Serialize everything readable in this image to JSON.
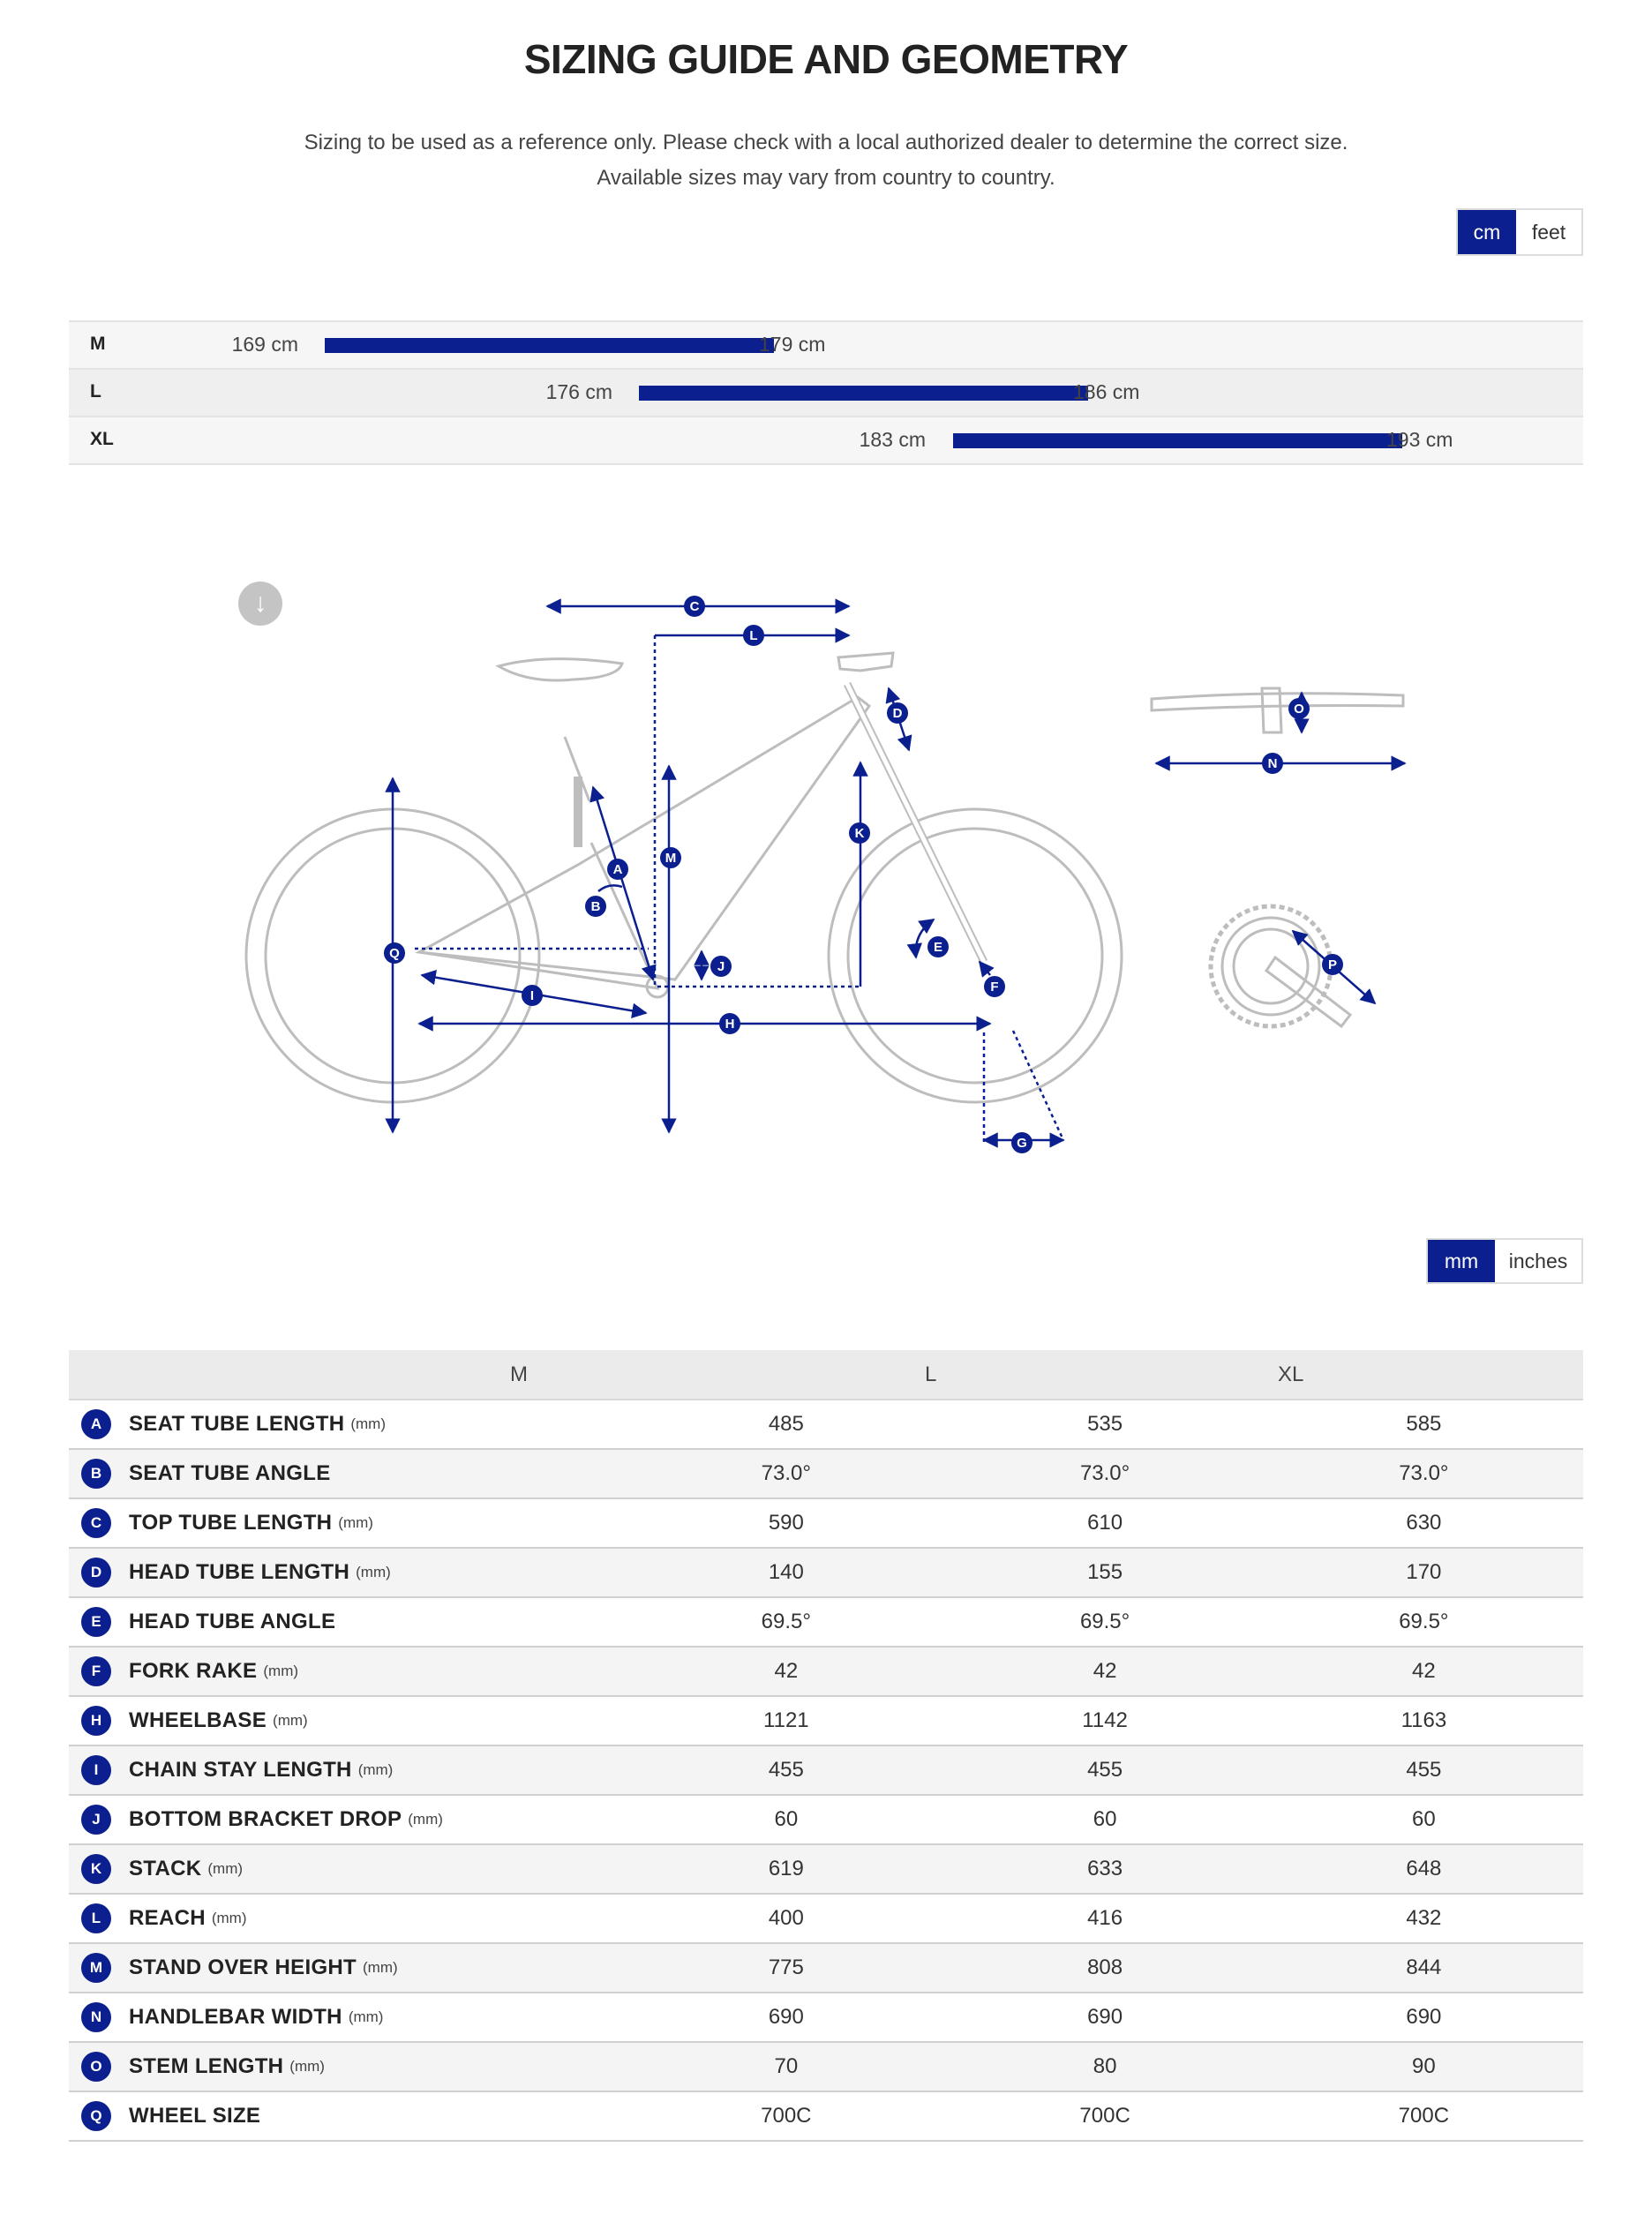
{
  "title": "SIZING GUIDE AND GEOMETRY",
  "subtitle_line1": "Sizing to be used as a reference only. Please check with a local authorized dealer to determine the correct size.",
  "subtitle_line2": "Available sizes may vary from country to country.",
  "height_units": {
    "options": [
      "cm",
      "feet"
    ],
    "selected": "cm"
  },
  "size_chart": [
    {
      "size": "M",
      "min_label": "169 cm",
      "max_label": "179 cm",
      "min": 169,
      "max": 179
    },
    {
      "size": "L",
      "min_label": "176 cm",
      "max_label": "186 cm",
      "min": 176,
      "max": 186
    },
    {
      "size": "XL",
      "min_label": "183 cm",
      "max_label": "193 cm",
      "min": 183,
      "max": 193
    }
  ],
  "diagram": {
    "labels": [
      "A",
      "B",
      "C",
      "D",
      "E",
      "F",
      "G",
      "H",
      "I",
      "J",
      "K",
      "L",
      "M",
      "N",
      "O",
      "P",
      "Q"
    ],
    "accent": "#0b1f8f",
    "frame_color": "#bdbdbd"
  },
  "length_units": {
    "options": [
      "mm",
      "inches"
    ],
    "selected": "mm"
  },
  "geometry": {
    "columns": [
      "",
      "M",
      "L",
      "XL"
    ],
    "rows": [
      {
        "letter": "A",
        "name": "SEAT TUBE LENGTH",
        "unit": "(mm)",
        "values": [
          "485",
          "535",
          "585"
        ]
      },
      {
        "letter": "B",
        "name": "SEAT TUBE ANGLE",
        "unit": "",
        "values": [
          "73.0°",
          "73.0°",
          "73.0°"
        ]
      },
      {
        "letter": "C",
        "name": "TOP TUBE LENGTH",
        "unit": "(mm)",
        "values": [
          "590",
          "610",
          "630"
        ]
      },
      {
        "letter": "D",
        "name": "HEAD TUBE LENGTH",
        "unit": "(mm)",
        "values": [
          "140",
          "155",
          "170"
        ]
      },
      {
        "letter": "E",
        "name": "HEAD TUBE ANGLE",
        "unit": "",
        "values": [
          "69.5°",
          "69.5°",
          "69.5°"
        ]
      },
      {
        "letter": "F",
        "name": "FORK RAKE",
        "unit": "(mm)",
        "values": [
          "42",
          "42",
          "42"
        ]
      },
      {
        "letter": "H",
        "name": "WHEELBASE",
        "unit": "(mm)",
        "values": [
          "1121",
          "1142",
          "1163"
        ]
      },
      {
        "letter": "I",
        "name": "CHAIN STAY LENGTH",
        "unit": "(mm)",
        "values": [
          "455",
          "455",
          "455"
        ]
      },
      {
        "letter": "J",
        "name": "BOTTOM BRACKET DROP",
        "unit": "(mm)",
        "values": [
          "60",
          "60",
          "60"
        ]
      },
      {
        "letter": "K",
        "name": "STACK",
        "unit": "(mm)",
        "values": [
          "619",
          "633",
          "648"
        ]
      },
      {
        "letter": "L",
        "name": "REACH",
        "unit": "(mm)",
        "values": [
          "400",
          "416",
          "432"
        ]
      },
      {
        "letter": "M",
        "name": "STAND OVER HEIGHT",
        "unit": "(mm)",
        "values": [
          "775",
          "808",
          "844"
        ]
      },
      {
        "letter": "N",
        "name": "HANDLEBAR WIDTH",
        "unit": "(mm)",
        "values": [
          "690",
          "690",
          "690"
        ]
      },
      {
        "letter": "O",
        "name": "STEM LENGTH",
        "unit": "(mm)",
        "values": [
          "70",
          "80",
          "90"
        ]
      },
      {
        "letter": "Q",
        "name": "WHEEL SIZE",
        "unit": "",
        "values": [
          "700C",
          "700C",
          "700C"
        ]
      }
    ]
  }
}
